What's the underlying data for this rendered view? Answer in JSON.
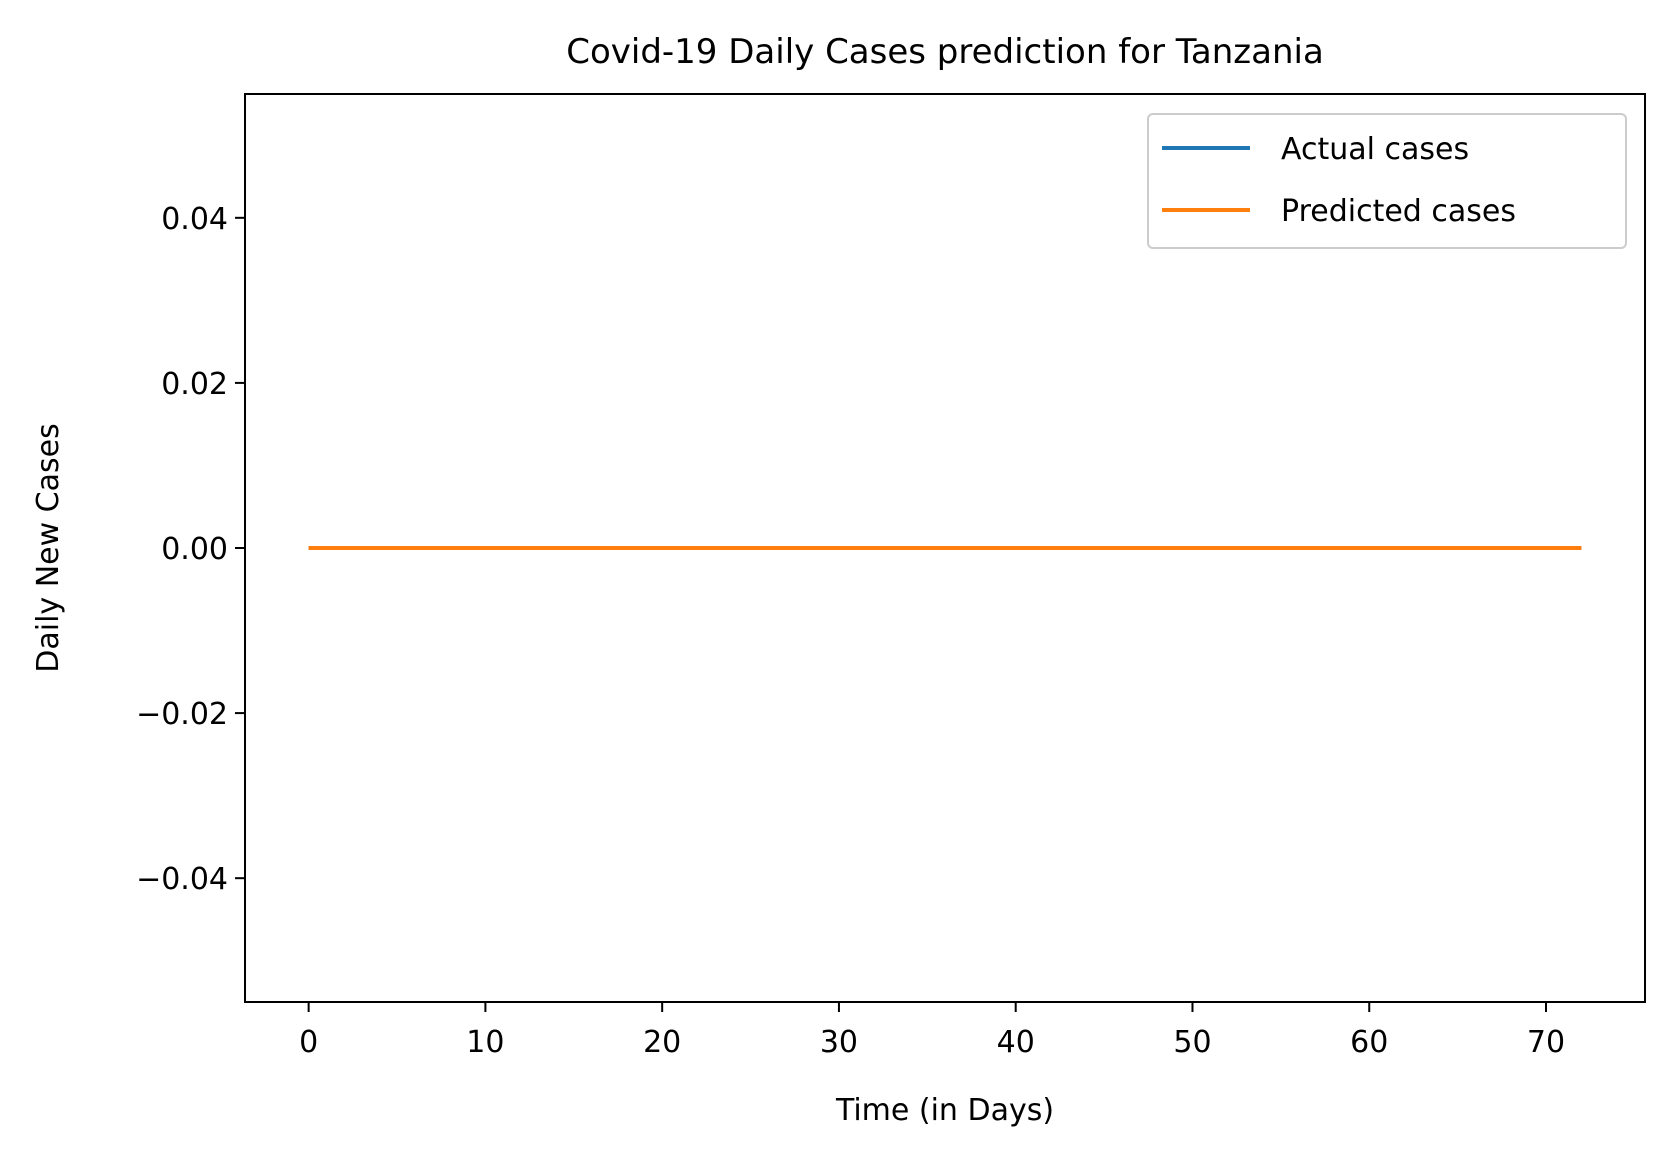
{
  "chart_data": {
    "type": "line",
    "title": "Covid-19 Daily Cases prediction for Tanzania",
    "xlabel": "Time (in Days)",
    "ylabel": "Daily New Cases",
    "xlim": [
      -3.6,
      75.6
    ],
    "ylim": [
      -0.055,
      0.055
    ],
    "x_ticks": [
      0,
      10,
      20,
      30,
      40,
      50,
      60,
      70
    ],
    "x_tick_labels": [
      "0",
      "10",
      "20",
      "30",
      "40",
      "50",
      "60",
      "70"
    ],
    "y_ticks": [
      0.04,
      0.02,
      0.0,
      -0.02,
      -0.04
    ],
    "y_tick_labels": [
      "0.04",
      "0.02",
      "0.00",
      "−0.02",
      "−0.04"
    ],
    "grid": false,
    "legend_position": "top-right",
    "series": [
      {
        "name": "Actual cases",
        "color": "#1f77b4",
        "x": [
          0,
          72
        ],
        "y": [
          0,
          0
        ]
      },
      {
        "name": "Predicted cases",
        "color": "#ff7f0e",
        "x": [
          0,
          72
        ],
        "y": [
          0,
          0
        ]
      }
    ]
  }
}
